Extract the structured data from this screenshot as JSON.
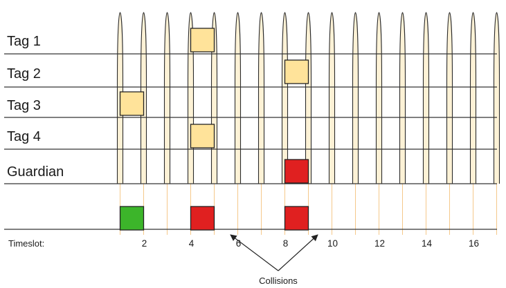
{
  "rows": [
    {
      "label": "Tag 1"
    },
    {
      "label": "Tag 2"
    },
    {
      "label": "Tag 3"
    },
    {
      "label": "Tag 4"
    },
    {
      "label": "Guardian"
    }
  ],
  "timeslot_label": "Timeslot:",
  "tick_labels": [
    "2",
    "4",
    "6",
    "8",
    "10",
    "12",
    "14",
    "16"
  ],
  "annotation": "Collisions",
  "colors": {
    "tag_box": "#ffe39a",
    "collision_box": "#e02020",
    "success_box": "#3cb52a",
    "pulse_fill": "#fdf2d6",
    "pulse_stroke": "#2a2a2a",
    "timeslot_line": "#f5c88a",
    "line": "#333333"
  },
  "transmissions": [
    {
      "row": "Tag 1",
      "slot": 5
    },
    {
      "row": "Tag 2",
      "slot": 9
    },
    {
      "row": "Tag 3",
      "slot": 2
    },
    {
      "row": "Tag 4",
      "slot": 5
    },
    {
      "row": "Guardian",
      "slot": 9
    }
  ],
  "outcomes": [
    {
      "slot": 2,
      "result": "success"
    },
    {
      "slot": 5,
      "result": "collision"
    },
    {
      "slot": 9,
      "result": "collision"
    }
  ]
}
